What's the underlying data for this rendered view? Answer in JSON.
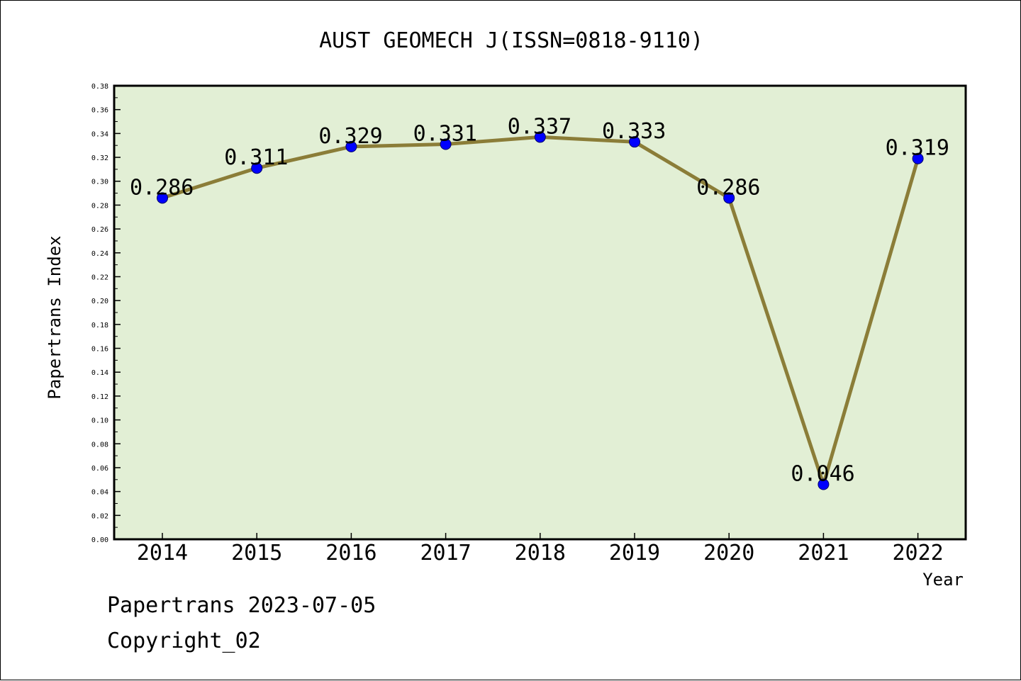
{
  "chart_data": {
    "type": "line",
    "title": "AUST GEOMECH J(ISSN=0818-9110)",
    "xlabel": "Year",
    "ylabel": "Papertrans Index",
    "categories": [
      "2014",
      "2015",
      "2016",
      "2017",
      "2018",
      "2019",
      "2020",
      "2021",
      "2022"
    ],
    "values": [
      0.286,
      0.311,
      0.329,
      0.331,
      0.337,
      0.333,
      0.286,
      0.046,
      0.319
    ],
    "data_labels": [
      "0.286",
      "0.311",
      "0.329",
      "0.331",
      "0.337",
      "0.333",
      "0.286",
      "0.046",
      "0.319"
    ],
    "ylim": [
      0,
      0.38
    ],
    "yticks": [
      "0.00",
      "0.02",
      "0.04",
      "0.06",
      "0.08",
      "0.10",
      "0.12",
      "0.14",
      "0.16",
      "0.18",
      "0.20",
      "0.22",
      "0.24",
      "0.26",
      "0.28",
      "0.30",
      "0.32",
      "0.34",
      "0.36",
      "0.38"
    ],
    "grid": false,
    "colors": {
      "plot_background": "#e2efd5",
      "line": "#8b7d38",
      "marker": "#0000ff"
    }
  },
  "footer": {
    "date_line": "Papertrans 2023-07-05",
    "copyright": "Copyright_02"
  }
}
